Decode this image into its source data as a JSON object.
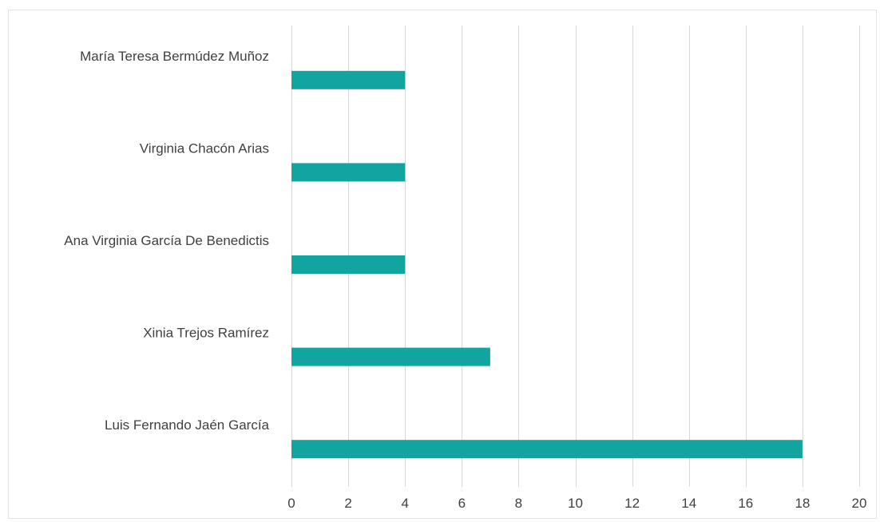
{
  "chart_data": {
    "type": "bar",
    "orientation": "horizontal",
    "categories": [
      "María Teresa Bermúdez Muñoz",
      "Virginia Chacón Arias",
      "Ana Virginia García De Benedictis",
      "Xinia Trejos Ramírez",
      "Luis Fernando Jaén García"
    ],
    "values": [
      4,
      4,
      4,
      7,
      18
    ],
    "title": "",
    "xlabel": "",
    "ylabel": "",
    "xlim": [
      0,
      20
    ],
    "xticks": [
      0,
      2,
      4,
      6,
      8,
      10,
      12,
      14,
      16,
      18,
      20
    ],
    "grid": "vertical",
    "legend": "none",
    "bar_color": "#12a5a0"
  }
}
